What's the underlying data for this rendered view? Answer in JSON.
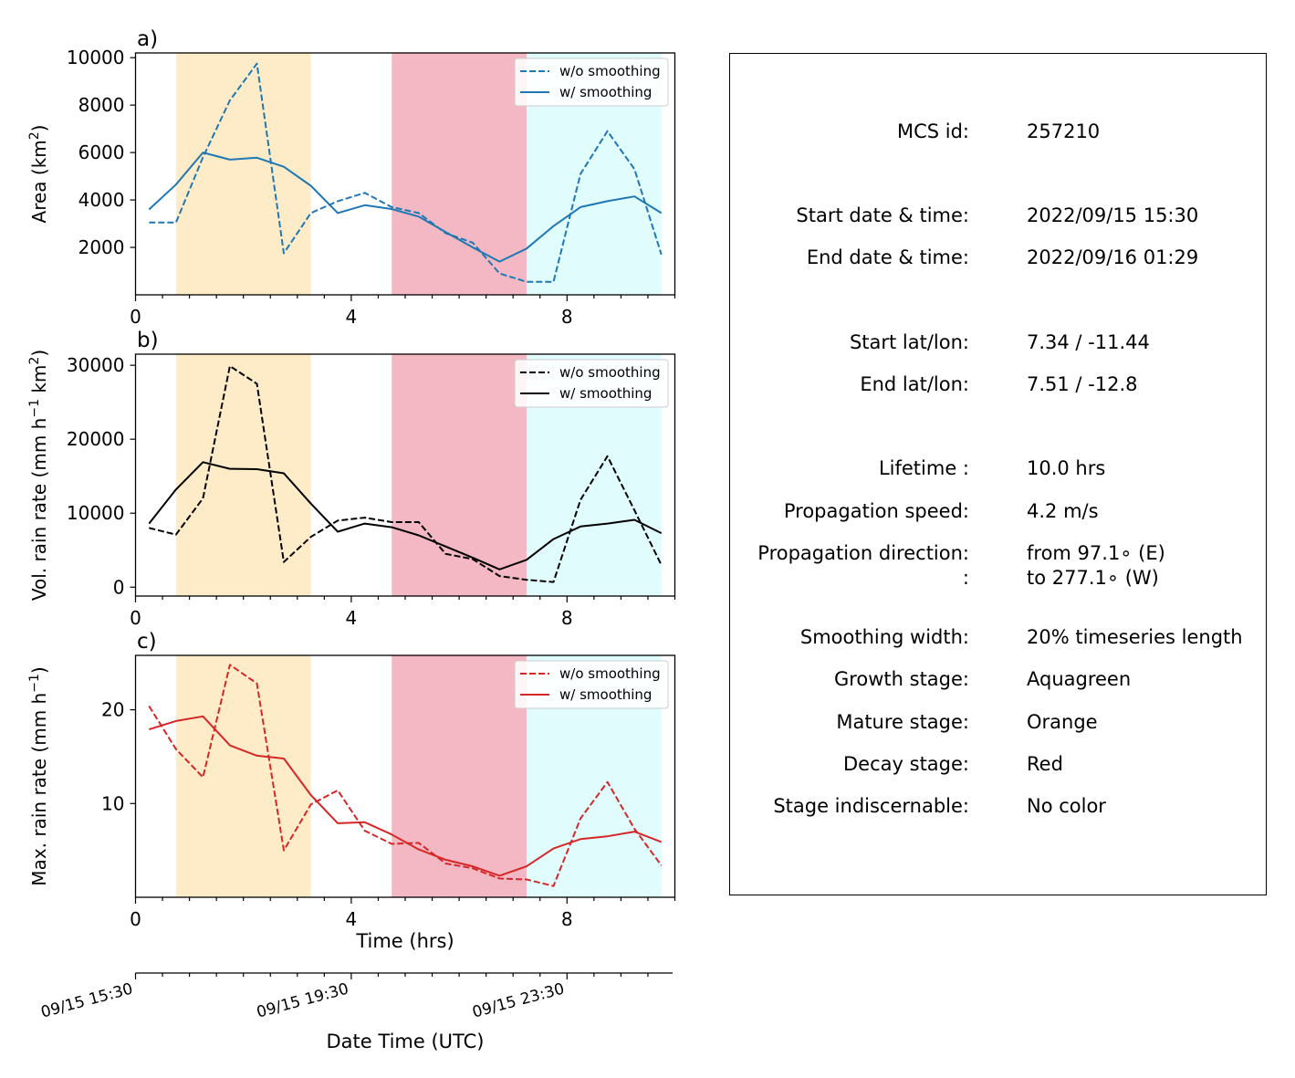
{
  "chart_data": [
    {
      "type": "line",
      "panel_label": "a)",
      "ylabel_parts": [
        "Area  (km",
        "2",
        ")"
      ],
      "xlabel": "",
      "xlim": [
        0,
        10
      ],
      "ylim": [
        0,
        10200
      ],
      "y_ticks": [
        2000,
        4000,
        6000,
        8000,
        10000
      ],
      "x_ticks": [
        0,
        4,
        8
      ],
      "color": "#1f77b4",
      "x": [
        0.25,
        0.75,
        1.25,
        1.75,
        2.25,
        2.75,
        3.25,
        3.75,
        4.25,
        4.75,
        5.25,
        5.75,
        6.25,
        6.75,
        7.25,
        7.75,
        8.25,
        8.75,
        9.25,
        9.75
      ],
      "series": [
        {
          "name": "w/o smoothing",
          "style": "dashed",
          "values": [
            3050,
            3050,
            5800,
            8200,
            9750,
            1750,
            3450,
            3950,
            4300,
            3700,
            3450,
            2600,
            2200,
            900,
            550,
            550,
            5100,
            6900,
            5300,
            1700
          ]
        },
        {
          "name": "w/ smoothing",
          "style": "solid",
          "values": [
            3600,
            4650,
            6000,
            5700,
            5780,
            5400,
            4600,
            3450,
            3780,
            3620,
            3300,
            2650,
            2000,
            1400,
            1950,
            2900,
            3700,
            3950,
            4150,
            3450
          ]
        }
      ],
      "legend_position": "upper right"
    },
    {
      "type": "line",
      "panel_label": "b)",
      "ylabel_parts": [
        "Vol. rain rate (mm h",
        "−1",
        " km",
        "2",
        ")"
      ],
      "xlabel": "",
      "xlim": [
        0,
        10
      ],
      "ylim": [
        -1200,
        31500
      ],
      "y_ticks": [
        0,
        10000,
        20000,
        30000
      ],
      "x_ticks": [
        0,
        4,
        8
      ],
      "color": "#000000",
      "x": [
        0.25,
        0.75,
        1.25,
        1.75,
        2.25,
        2.75,
        3.25,
        3.75,
        4.25,
        4.75,
        5.25,
        5.75,
        6.25,
        6.75,
        7.25,
        7.75,
        8.25,
        8.75,
        9.25,
        9.75
      ],
      "series": [
        {
          "name": "w/o smoothing",
          "style": "dashed",
          "values": [
            8000,
            7100,
            12000,
            29900,
            27500,
            3400,
            6800,
            9000,
            9400,
            8800,
            8800,
            4500,
            3800,
            1500,
            1000,
            700,
            11800,
            17700,
            10400,
            3000
          ]
        },
        {
          "name": "w/ smoothing",
          "style": "solid",
          "values": [
            8600,
            13200,
            16900,
            16000,
            15950,
            15400,
            11300,
            7500,
            8600,
            8100,
            7000,
            5500,
            4000,
            2400,
            3700,
            6500,
            8200,
            8600,
            9100,
            7300
          ]
        }
      ],
      "legend_position": "upper right"
    },
    {
      "type": "line",
      "panel_label": "c)",
      "ylabel_parts": [
        "Max. rain rate  (mm h",
        "−1",
        ")"
      ],
      "xlabel": "Time (hrs)",
      "xlim": [
        0,
        10
      ],
      "ylim": [
        0,
        25.8
      ],
      "y_ticks": [
        10,
        20
      ],
      "x_ticks": [
        0,
        4,
        8
      ],
      "color": "#d62728",
      "x": [
        0.25,
        0.75,
        1.25,
        1.75,
        2.25,
        2.75,
        3.25,
        3.75,
        4.25,
        4.75,
        5.25,
        5.75,
        6.25,
        6.75,
        7.25,
        7.75,
        8.25,
        8.75,
        9.25,
        9.75
      ],
      "series": [
        {
          "name": "w/o smoothing",
          "style": "dashed",
          "values": [
            20.4,
            15.8,
            12.8,
            24.8,
            22.8,
            5.0,
            9.9,
            11.4,
            7.1,
            5.7,
            5.8,
            3.6,
            3.1,
            2.0,
            1.9,
            1.2,
            8.4,
            12.3,
            7.3,
            3.4
          ]
        },
        {
          "name": "w/ smoothing",
          "style": "solid",
          "values": [
            17.9,
            18.8,
            19.3,
            16.2,
            15.1,
            14.8,
            10.9,
            7.9,
            8.0,
            6.7,
            5.1,
            4.0,
            3.3,
            2.3,
            3.3,
            5.2,
            6.2,
            6.5,
            7.0,
            5.9
          ]
        }
      ],
      "legend_position": "upper right"
    }
  ],
  "stage_shading": [
    {
      "stage": "Orange",
      "x_start": 0.75,
      "x_end": 3.25,
      "color": "#feecc8"
    },
    {
      "stage": "Red",
      "x_start": 4.75,
      "x_end": 7.25,
      "color": "#f3b8c3"
    },
    {
      "stage": "Aquagreen",
      "x_start": 7.25,
      "x_end": 9.75,
      "color": "#e0fcfc"
    }
  ],
  "datetime_axis": {
    "label": "Date Time (UTC)",
    "ticks": [
      {
        "x": 0,
        "label": "09/15 15:30"
      },
      {
        "x": 4,
        "label": "09/15 19:30"
      },
      {
        "x": 8,
        "label": "09/15 23:30"
      }
    ]
  },
  "info_panel": {
    "rows": [
      {
        "label": "MCS id:",
        "value": "257210"
      },
      {
        "label": "Start date & time:",
        "value": "2022/09/15 15:30"
      },
      {
        "label": "End date & time:",
        "value": "2022/09/16 01:29"
      },
      {
        "label": "Start lat/lon:",
        "value": "7.34 / -11.44"
      },
      {
        "label": "End lat/lon:",
        "value": "7.51 / -12.8"
      },
      {
        "label": "Lifetime :",
        "value": "10.0 hrs"
      },
      {
        "label": "Propagation speed:",
        "value": "4.2 m/s"
      },
      {
        "label": "Propagation direction:",
        "value": "from  97.1∘ (E)"
      },
      {
        "label": ":",
        "value": "to   277.1∘ (W)"
      },
      {
        "label": "Smoothing width:",
        "value": "20% timeseries length"
      },
      {
        "label": "Growth stage:",
        "value": "Aquagreen"
      },
      {
        "label": "Mature stage:",
        "value": "Orange"
      },
      {
        "label": "Decay stage:",
        "value": "Red"
      },
      {
        "label": "Stage indiscernable:",
        "value": "No color"
      }
    ]
  }
}
